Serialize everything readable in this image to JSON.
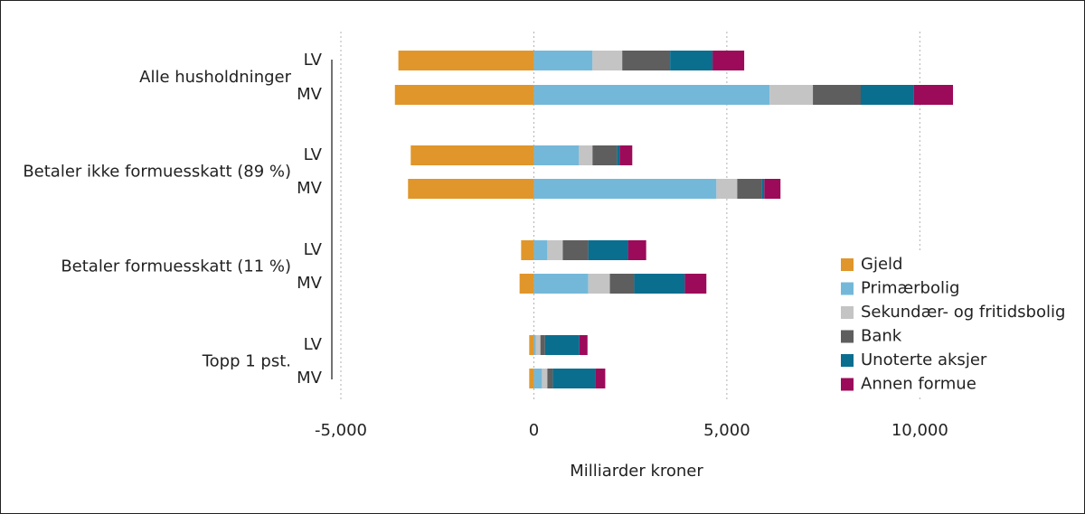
{
  "chart_data": {
    "type": "bar",
    "orientation": "horizontal",
    "stacked": true,
    "groups": [
      "Alle husholdninger",
      "Betaler ikke formuesskatt (89 %)",
      "Betaler formuesskatt (11 %)",
      "Topp 1 pst."
    ],
    "categories": [
      "LV",
      "MV",
      "LV",
      "MV",
      "LV",
      "MV",
      "LV",
      "MV"
    ],
    "series": [
      {
        "name": "Gjeld",
        "color": "#e0962a",
        "values": [
          -3510,
          -3600,
          -3190,
          -3260,
          -330,
          -370,
          -120,
          -120
        ]
      },
      {
        "name": "Primærbolig",
        "color": "#74b8d9",
        "values": [
          1520,
          6110,
          1170,
          4730,
          350,
          1410,
          50,
          210
        ]
      },
      {
        "name": "Sekundær- og fritidsbolig",
        "color": "#c4c4c4",
        "values": [
          770,
          1120,
          350,
          540,
          400,
          560,
          120,
          140
        ]
      },
      {
        "name": "Bank",
        "color": "#5e5e5e",
        "values": [
          1240,
          1240,
          630,
          630,
          660,
          630,
          120,
          140
        ]
      },
      {
        "name": "Unoterte aksjer",
        "color": "#0a6e8f",
        "values": [
          1100,
          1380,
          70,
          70,
          1030,
          1310,
          890,
          1100
        ]
      },
      {
        "name": "Annen formue",
        "color": "#9c0a5a",
        "values": [
          820,
          1010,
          330,
          420,
          470,
          560,
          210,
          260
        ]
      }
    ],
    "xlim": [
      -5000,
      11000
    ],
    "xticks": [
      {
        "value": -5000,
        "label": "-5,000"
      },
      0,
      {
        "value": 5000,
        "label": "5,000"
      },
      {
        "value": 10000,
        "label": "10,000"
      }
    ],
    "xlabel": "Milliarder kroner",
    "grid": true,
    "legend": "lower-right"
  }
}
